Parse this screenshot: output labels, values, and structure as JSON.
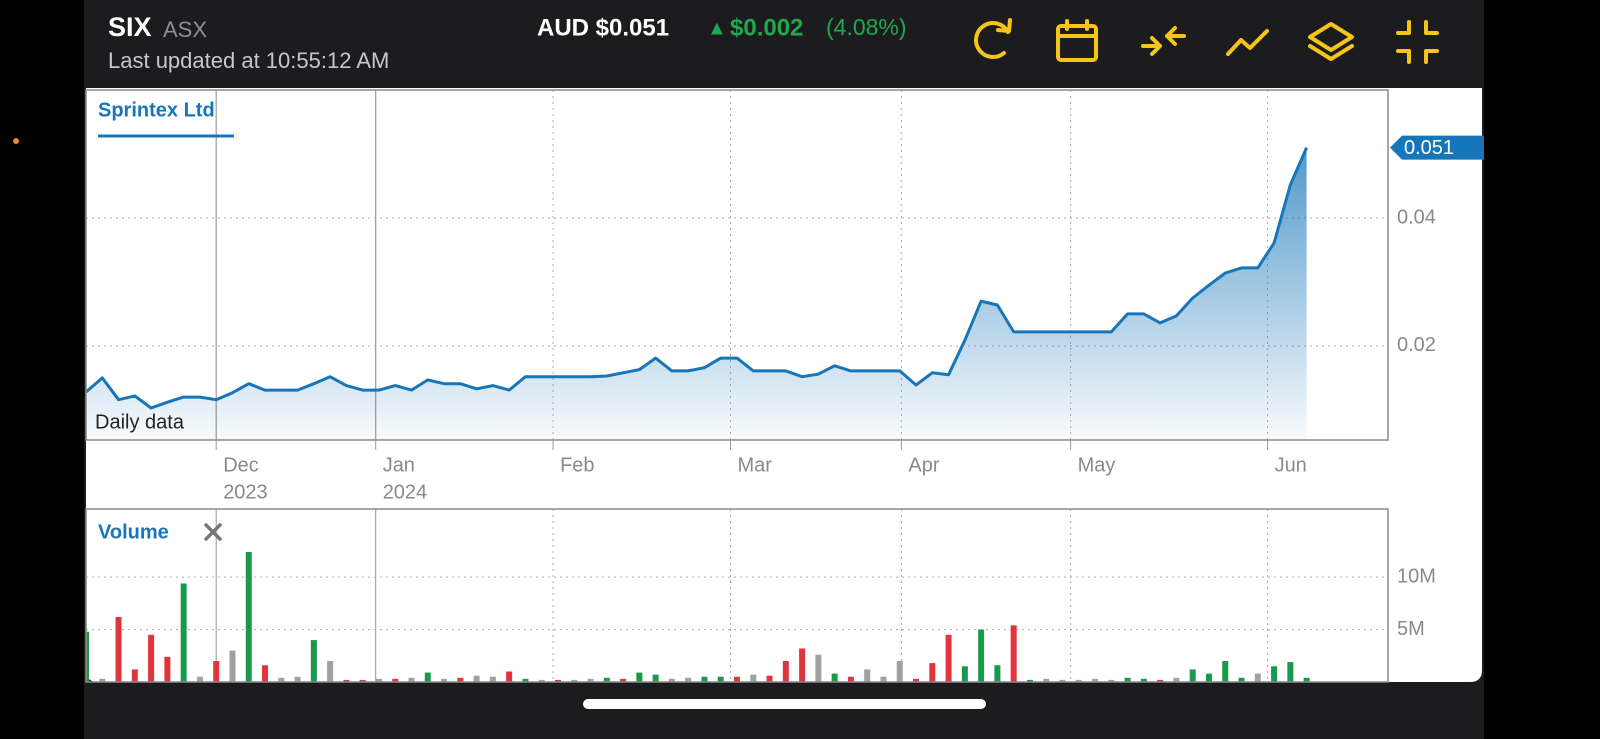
{
  "header": {
    "symbol": "SIX",
    "exchange": "ASX",
    "updated": "Last updated at 10:55:12 AM",
    "price": "AUD $0.051",
    "arrow": "▲",
    "change": "$0.002",
    "change_pct": "(4.08%)"
  },
  "chart_data": [
    {
      "type": "area-line",
      "title": "Sprintex Ltd",
      "annotation": "Daily data",
      "color": "#1776b9",
      "xlim": [
        0,
        80
      ],
      "xticks": [
        {
          "value": 8,
          "label": "Dec",
          "year": "2023"
        },
        {
          "value": 17.8,
          "label": "Jan",
          "year": "2024"
        },
        {
          "value": 28.7,
          "label": "Feb"
        },
        {
          "value": 39.6,
          "label": "Mar"
        },
        {
          "value": 50.1,
          "label": "Apr"
        },
        {
          "value": 60.5,
          "label": "May"
        },
        {
          "value": 72.6,
          "label": "Jun"
        }
      ],
      "ylim": [
        0.0053,
        0.06
      ],
      "yticks": [
        0.02,
        0.04
      ],
      "grid": true,
      "values": [
        0.0128,
        0.015,
        0.0116,
        0.0122,
        0.0103,
        0.0112,
        0.012,
        0.012,
        0.0116,
        0.0127,
        0.0141,
        0.0131,
        0.0131,
        0.0131,
        0.0141,
        0.0152,
        0.0138,
        0.0131,
        0.0131,
        0.0138,
        0.0131,
        0.0147,
        0.0141,
        0.0141,
        0.0133,
        0.0138,
        0.0131,
        0.0152,
        0.0152,
        0.0152,
        0.0152,
        0.0152,
        0.0153,
        0.0158,
        0.0163,
        0.0181,
        0.0161,
        0.0161,
        0.0166,
        0.0181,
        0.0181,
        0.0161,
        0.0161,
        0.0161,
        0.0152,
        0.0156,
        0.0169,
        0.0161,
        0.0161,
        0.0161,
        0.0161,
        0.0139,
        0.0158,
        0.0155,
        0.0209,
        0.027,
        0.0264,
        0.0222,
        0.0222,
        0.0222,
        0.0222,
        0.0222,
        0.0222,
        0.0222,
        0.025,
        0.025,
        0.0236,
        0.0247,
        0.0275,
        0.0295,
        0.0314,
        0.0322,
        0.0322,
        0.0361,
        0.0452,
        0.051
      ]
    },
    {
      "type": "bar",
      "title": "Volume",
      "xlim": [
        0,
        80
      ],
      "ylim": [
        0,
        16500000
      ],
      "yticks": [
        {
          "value": 5000000,
          "label": "5M"
        },
        {
          "value": 10000000,
          "label": "10M"
        }
      ],
      "grid": true,
      "colors": {
        "up": "#1a9a48",
        "down": "#e0343f",
        "flat": "#a0a0a0"
      },
      "values": [
        4800000,
        300000,
        6200000,
        1200000,
        4500000,
        2400000,
        9400000,
        500000,
        2000000,
        3000000,
        12400000,
        1600000,
        400000,
        500000,
        4000000,
        2000000,
        200000,
        200000,
        300000,
        300000,
        400000,
        900000,
        300000,
        400000,
        600000,
        500000,
        1000000,
        300000,
        200000,
        200000,
        200000,
        300000,
        400000,
        300000,
        900000,
        700000,
        300000,
        400000,
        500000,
        500000,
        500000,
        700000,
        600000,
        2000000,
        3200000,
        2600000,
        800000,
        500000,
        1200000,
        500000,
        2000000,
        300000,
        1800000,
        4500000,
        1500000,
        5000000,
        1600000,
        5400000,
        200000,
        300000,
        200000,
        200000,
        300000,
        200000,
        400000,
        300000,
        200000,
        400000,
        1200000,
        800000,
        2000000,
        400000,
        800000,
        1500000,
        1900000,
        400000
      ],
      "directions": [
        "up",
        "flat",
        "down",
        "down",
        "down",
        "down",
        "up",
        "flat",
        "down",
        "flat",
        "up",
        "down",
        "flat",
        "flat",
        "up",
        "flat",
        "down",
        "down",
        "flat",
        "down",
        "flat",
        "up",
        "flat",
        "down",
        "flat",
        "flat",
        "down",
        "up",
        "flat",
        "down",
        "flat",
        "flat",
        "up",
        "down",
        "up",
        "up",
        "flat",
        "flat",
        "up",
        "up",
        "down",
        "flat",
        "down",
        "down",
        "down",
        "flat",
        "up",
        "down",
        "flat",
        "flat",
        "flat",
        "down",
        "down",
        "down",
        "up",
        "up",
        "up",
        "down",
        "up",
        "flat",
        "flat",
        "flat",
        "flat",
        "flat",
        "up",
        "up",
        "down",
        "flat",
        "up",
        "up",
        "up",
        "up",
        "flat",
        "up",
        "up",
        "up"
      ]
    }
  ]
}
